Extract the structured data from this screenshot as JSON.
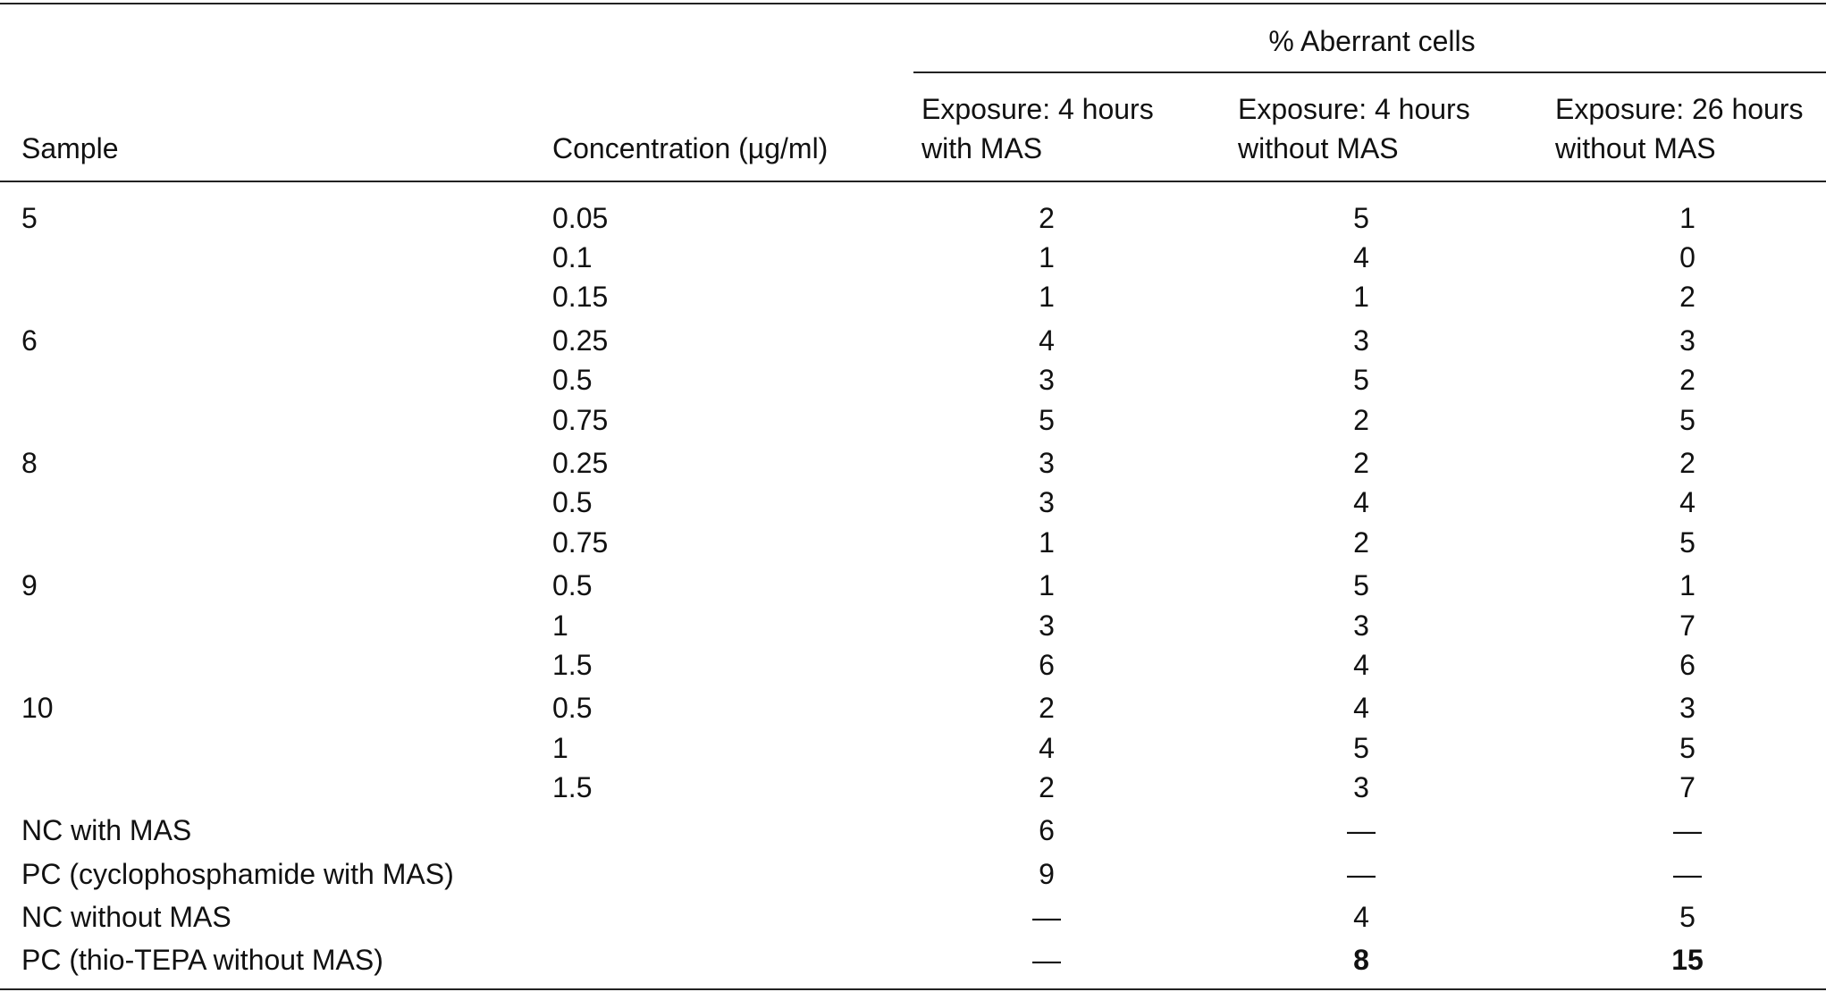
{
  "table": {
    "group_header": "% Aberrant cells",
    "columns": [
      "Sample",
      "Concentration (µg/ml)",
      "Exposure: 4 hours with MAS",
      "Exposure: 4 hours without MAS",
      "Exposure: 26 hours without MAS"
    ],
    "groups": [
      {
        "sample": "5",
        "rows": [
          {
            "concentration": "0.05",
            "values": [
              "2",
              "5",
              "1"
            ]
          },
          {
            "concentration": "0.1",
            "values": [
              "1",
              "4",
              "0"
            ]
          },
          {
            "concentration": "0.15",
            "values": [
              "1",
              "1",
              "2"
            ]
          }
        ]
      },
      {
        "sample": "6",
        "rows": [
          {
            "concentration": "0.25",
            "values": [
              "4",
              "3",
              "3"
            ]
          },
          {
            "concentration": "0.5",
            "values": [
              "3",
              "5",
              "2"
            ]
          },
          {
            "concentration": "0.75",
            "values": [
              "5",
              "2",
              "5"
            ]
          }
        ]
      },
      {
        "sample": "8",
        "rows": [
          {
            "concentration": "0.25",
            "values": [
              "3",
              "2",
              "2"
            ]
          },
          {
            "concentration": "0.5",
            "values": [
              "3",
              "4",
              "4"
            ]
          },
          {
            "concentration": "0.75",
            "values": [
              "1",
              "2",
              "5"
            ]
          }
        ]
      },
      {
        "sample": "9",
        "rows": [
          {
            "concentration": "0.5",
            "values": [
              "1",
              "5",
              "1"
            ]
          },
          {
            "concentration": "1",
            "values": [
              "3",
              "3",
              "7"
            ]
          },
          {
            "concentration": "1.5",
            "values": [
              "6",
              "4",
              "6"
            ]
          }
        ]
      },
      {
        "sample": "10",
        "rows": [
          {
            "concentration": "0.5",
            "values": [
              "2",
              "4",
              "3"
            ]
          },
          {
            "concentration": "1",
            "values": [
              "4",
              "5",
              "5"
            ]
          },
          {
            "concentration": "1.5",
            "values": [
              "2",
              "3",
              "7"
            ]
          }
        ]
      }
    ],
    "controls": [
      {
        "label": "NC with MAS",
        "values": [
          "6",
          "—",
          "—"
        ]
      },
      {
        "label": "PC (cyclophosphamide with MAS)",
        "values": [
          "9",
          "—",
          "—"
        ]
      },
      {
        "label": "NC without MAS",
        "values": [
          "—",
          "4",
          "5"
        ]
      },
      {
        "label": "PC (thio-TEPA without MAS)",
        "values": [
          "—",
          "8",
          "15"
        ]
      }
    ]
  }
}
